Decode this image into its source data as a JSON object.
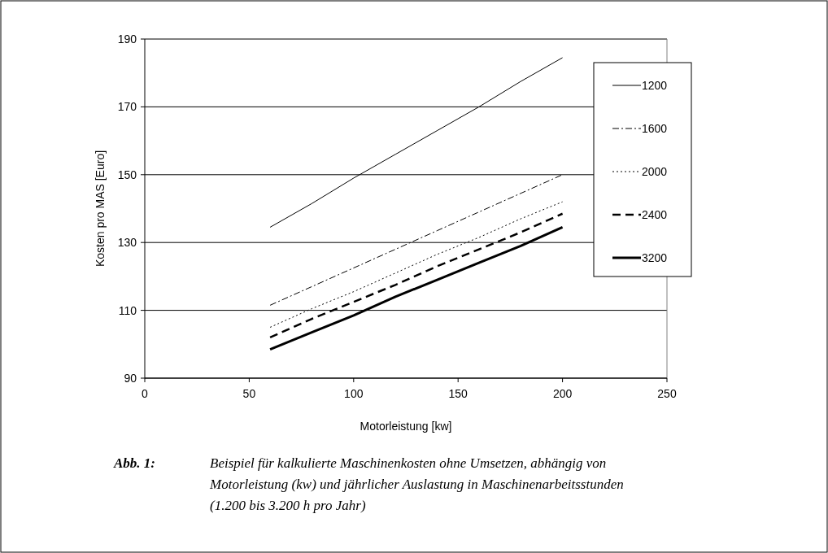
{
  "chart_data": {
    "type": "line",
    "xlabel": "Motorleistung [kw]",
    "ylabel": "Kosten pro MAS [Euro]",
    "x": [
      60,
      80,
      100,
      120,
      140,
      160,
      180,
      200
    ],
    "series": [
      {
        "name": "1200",
        "color": "#000000",
        "line_style": "solid",
        "values": [
          134.5,
          141.5,
          149,
          156,
          163,
          170,
          177.5,
          184.5
        ]
      },
      {
        "name": "1600",
        "color": "#000000",
        "line_style": "dashdot",
        "values": [
          111.5,
          117,
          122.5,
          128,
          133.5,
          139,
          144.5,
          150
        ]
      },
      {
        "name": "2000",
        "color": "#000000",
        "line_style": "dotted",
        "values": [
          105,
          110.5,
          115.5,
          121,
          126.5,
          131.5,
          137,
          142
        ]
      },
      {
        "name": "2400",
        "color": "#000000",
        "line_style": "dashed",
        "values": [
          102,
          107.5,
          112.5,
          117.5,
          123,
          128,
          133,
          138.5
        ]
      },
      {
        "name": "3200",
        "color": "#000000",
        "line_style": "solid",
        "values": [
          98.5,
          103.5,
          108.5,
          114,
          119,
          124,
          129,
          134.5
        ]
      }
    ],
    "xlim": [
      0,
      250
    ],
    "xticks": [
      0,
      50,
      100,
      150,
      200,
      250
    ],
    "ylim": [
      90,
      190
    ],
    "yticks": [
      90,
      110,
      130,
      150,
      170,
      190
    ],
    "grid": "y",
    "legend": "top right",
    "marker": "none",
    "annotations": [
      "Abb. 1:",
      "Beispiel für kalkulierte Maschinenkosten ohne Umsetzen, abhängig von\nMotorleistung (kw) und jährlicher Auslastung in Maschinenarbeitsstunden\n(1.200 bis 3.200 h pro Jahr)"
    ]
  }
}
